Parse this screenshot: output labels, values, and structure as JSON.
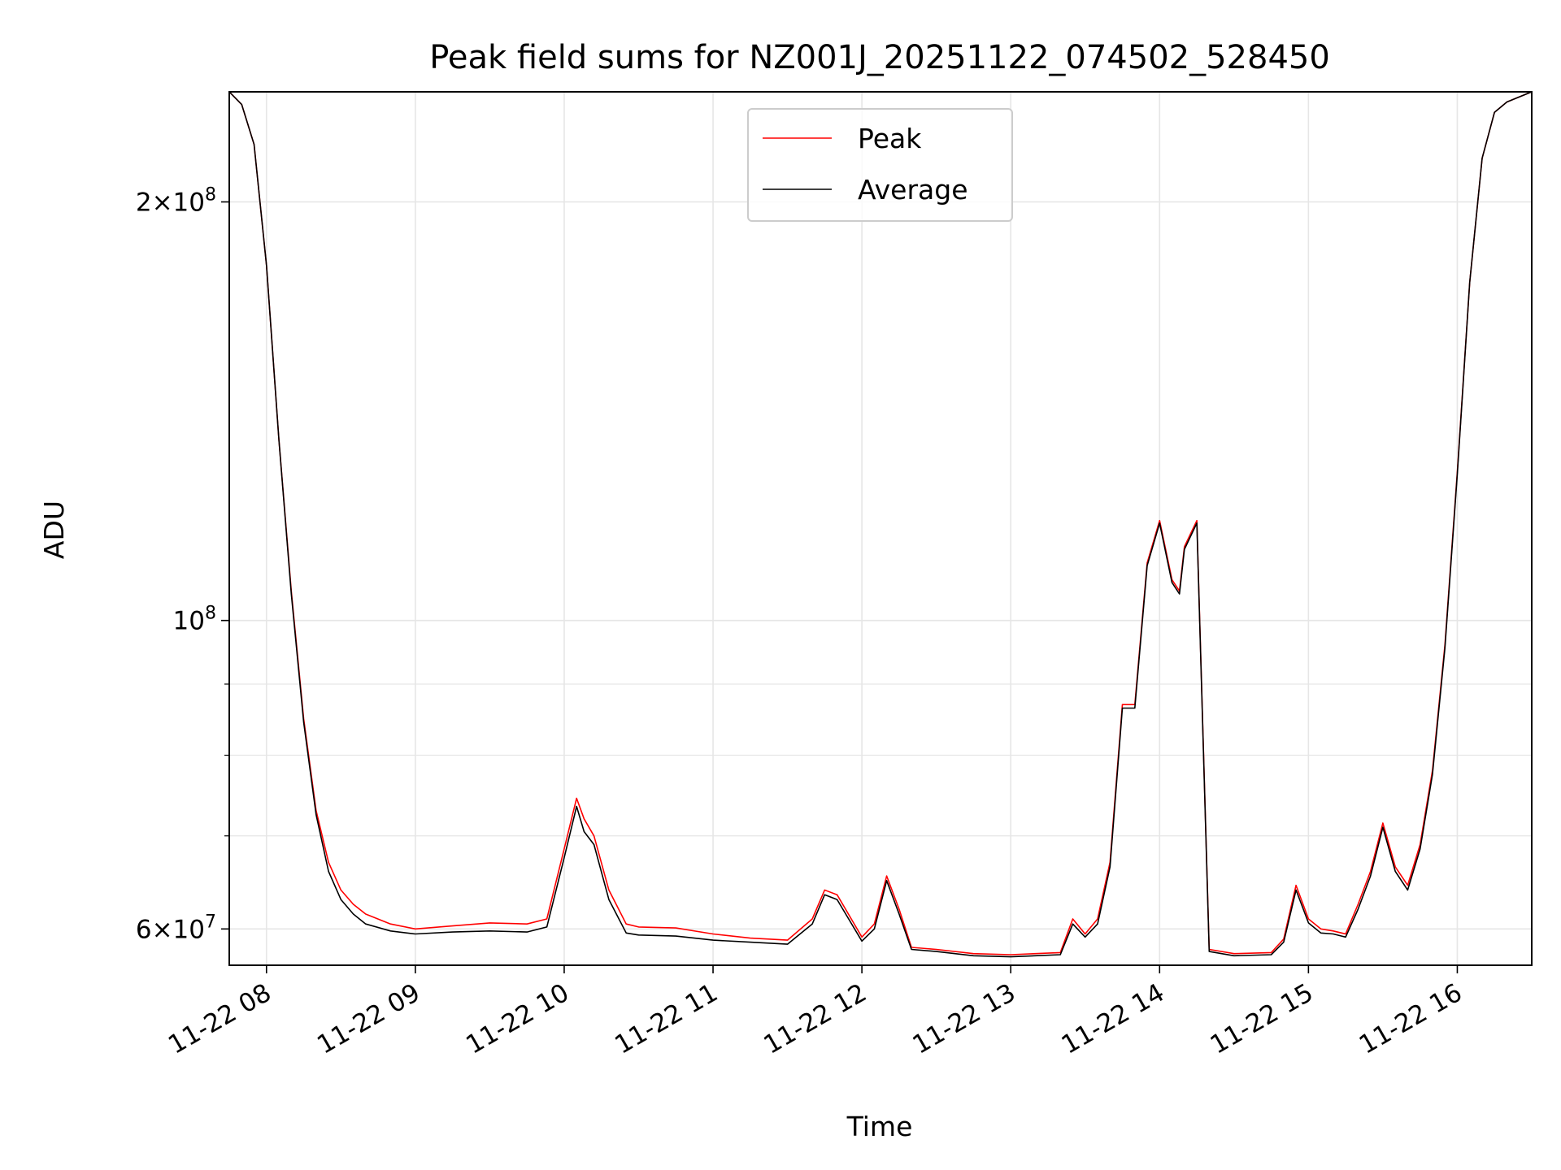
{
  "chart_data": {
    "type": "line",
    "title": "Peak field sums for NZ001J_20251122_074502_528450",
    "xlabel": "Time",
    "ylabel": "ADU",
    "y_scale": "log",
    "ylim": [
      56500000,
      240000000
    ],
    "xlim": [
      "2025-11-22 07:45",
      "2025-11-22 16:30"
    ],
    "x_ticks": [
      "11-22 08",
      "11-22 09",
      "11-22 10",
      "11-22 11",
      "11-22 12",
      "11-22 13",
      "11-22 14",
      "11-22 15",
      "11-22 16"
    ],
    "y_ticks": [
      {
        "value": 60000000,
        "mantissa": "6",
        "exponent": "7"
      },
      {
        "value": 100000000,
        "mantissa": "",
        "exponent": "8"
      },
      {
        "value": 200000000,
        "mantissa": "2",
        "exponent": "8"
      }
    ],
    "y_minor_ticks": [
      70000000,
      80000000,
      90000000
    ],
    "grid": true,
    "legend_position": "top-center",
    "x": [
      "2025-11-22 07:45",
      "2025-11-22 07:50",
      "2025-11-22 07:55",
      "2025-11-22 08:00",
      "2025-11-22 08:05",
      "2025-11-22 08:10",
      "2025-11-22 08:15",
      "2025-11-22 08:20",
      "2025-11-22 08:25",
      "2025-11-22 08:30",
      "2025-11-22 08:35",
      "2025-11-22 08:40",
      "2025-11-22 08:50",
      "2025-11-22 09:00",
      "2025-11-22 09:15",
      "2025-11-22 09:30",
      "2025-11-22 09:45",
      "2025-11-22 09:53",
      "2025-11-22 10:00",
      "2025-11-22 10:05",
      "2025-11-22 10:08",
      "2025-11-22 10:12",
      "2025-11-22 10:18",
      "2025-11-22 10:25",
      "2025-11-22 10:30",
      "2025-11-22 10:45",
      "2025-11-22 11:00",
      "2025-11-22 11:15",
      "2025-11-22 11:30",
      "2025-11-22 11:40",
      "2025-11-22 11:45",
      "2025-11-22 11:50",
      "2025-11-22 12:00",
      "2025-11-22 12:05",
      "2025-11-22 12:10",
      "2025-11-22 12:15",
      "2025-11-22 12:20",
      "2025-11-22 12:30",
      "2025-11-22 12:45",
      "2025-11-22 13:00",
      "2025-11-22 13:20",
      "2025-11-22 13:25",
      "2025-11-22 13:30",
      "2025-11-22 13:35",
      "2025-11-22 13:40",
      "2025-11-22 13:45",
      "2025-11-22 13:50",
      "2025-11-22 13:55",
      "2025-11-22 14:00",
      "2025-11-22 14:05",
      "2025-11-22 14:08",
      "2025-11-22 14:10",
      "2025-11-22 14:15",
      "2025-11-22 14:20",
      "2025-11-22 14:30",
      "2025-11-22 14:45",
      "2025-11-22 14:50",
      "2025-11-22 14:55",
      "2025-11-22 15:00",
      "2025-11-22 15:05",
      "2025-11-22 15:10",
      "2025-11-22 15:15",
      "2025-11-22 15:20",
      "2025-11-22 15:25",
      "2025-11-22 15:30",
      "2025-11-22 15:35",
      "2025-11-22 15:40",
      "2025-11-22 15:45",
      "2025-11-22 15:50",
      "2025-11-22 15:55",
      "2025-11-22 16:00",
      "2025-11-22 16:05",
      "2025-11-22 16:10",
      "2025-11-22 16:15",
      "2025-11-22 16:20",
      "2025-11-22 16:30"
    ],
    "series": [
      {
        "name": "Peak",
        "color": "#ff0000",
        "values": [
          240000000,
          235000000,
          220000000,
          180000000,
          135000000,
          105000000,
          85000000,
          73000000,
          67000000,
          64000000,
          62500000,
          61500000,
          60500000,
          60000000,
          60300000,
          60600000,
          60500000,
          61000000,
          68500000,
          74500000,
          72000000,
          70000000,
          64000000,
          60500000,
          60200000,
          60100000,
          59500000,
          59100000,
          58900000,
          61000000,
          64000000,
          63500000,
          59200000,
          60500000,
          65500000,
          62000000,
          58200000,
          58000000,
          57600000,
          57500000,
          57700000,
          61000000,
          59500000,
          61000000,
          67000000,
          87000000,
          87000000,
          110000000,
          118000000,
          107000000,
          105000000,
          113000000,
          118000000,
          58000000,
          57600000,
          57700000,
          59000000,
          64500000,
          61000000,
          60000000,
          59800000,
          59500000,
          62500000,
          66000000,
          71500000,
          66500000,
          64500000,
          69000000,
          78000000,
          96000000,
          128000000,
          175000000,
          215000000,
          232000000,
          236000000,
          240000000
        ]
      },
      {
        "name": "Average",
        "color": "#000000",
        "values": [
          240000000,
          235000000,
          220000000,
          180000000,
          135000000,
          104500000,
          84500000,
          72500000,
          66000000,
          63000000,
          61500000,
          60500000,
          59800000,
          59500000,
          59700000,
          59800000,
          59700000,
          60200000,
          67500000,
          73500000,
          70500000,
          69000000,
          63000000,
          59600000,
          59400000,
          59300000,
          58900000,
          58700000,
          58500000,
          60500000,
          63500000,
          63000000,
          58800000,
          60000000,
          65000000,
          61500000,
          58000000,
          57800000,
          57400000,
          57300000,
          57500000,
          60500000,
          59200000,
          60500000,
          66500000,
          86500000,
          86500000,
          109500000,
          117500000,
          106500000,
          104500000,
          112500000,
          117500000,
          57800000,
          57400000,
          57500000,
          58700000,
          64000000,
          60600000,
          59600000,
          59500000,
          59200000,
          62000000,
          65500000,
          71000000,
          66000000,
          64000000,
          68500000,
          77500000,
          95500000,
          127500000,
          175000000,
          215000000,
          232000000,
          236000000,
          240000000
        ]
      }
    ]
  }
}
